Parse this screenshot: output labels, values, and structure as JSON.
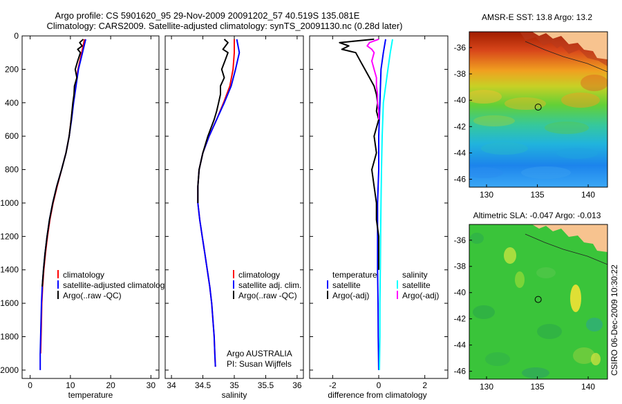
{
  "header": {
    "line1": "Argo profile: CS 5901620_95 29-Nov-2009 20091202_57 40.519S 135.081E",
    "line2": "Climatology: CARS2009. Satellite-adjusted climatology: synTS_20091130.nc (0.28d later)"
  },
  "credit": "CSIRO 06-Dec-2009 10:30:22",
  "chart_data": [
    {
      "type": "line",
      "name": "temperature profile",
      "xlabel": "temperature",
      "ylabel": "depth",
      "xlim": [
        -2,
        32
      ],
      "ylim": [
        2050,
        0
      ],
      "xticks": [
        0,
        10,
        20,
        30
      ],
      "yticks": [
        0,
        200,
        400,
        600,
        800,
        1000,
        1200,
        1400,
        1600,
        1800,
        2000
      ],
      "legend": [
        "climatology",
        "satellite-adjusted climatology",
        "Argo(..raw -QC)"
      ],
      "series": [
        {
          "name": "climatology",
          "color": "#ff0000",
          "depth": [
            20,
            100,
            200,
            300,
            400,
            500,
            600,
            700,
            800,
            900,
            1000,
            1100,
            1200,
            1300,
            1400,
            1500,
            1600,
            1700,
            1800,
            1900
          ],
          "values": [
            13.5,
            12.8,
            11.9,
            11.3,
            10.7,
            10.2,
            9.7,
            8.9,
            7.8,
            6.7,
            5.7,
            4.9,
            4.3,
            3.8,
            3.4,
            3.1,
            2.9,
            2.8,
            2.7,
            2.6
          ]
        },
        {
          "name": "satellite-adjusted climatology",
          "color": "#0000ff",
          "depth": [
            20,
            100,
            200,
            300,
            400,
            500,
            600,
            700,
            800,
            900,
            1000,
            1100,
            1200,
            1300,
            1400,
            1500,
            1600,
            1700,
            1800,
            1900,
            2000
          ],
          "values": [
            13.8,
            13.0,
            12.0,
            11.4,
            10.8,
            10.3,
            9.7,
            8.9,
            7.8,
            6.6,
            5.6,
            4.8,
            4.2,
            3.7,
            3.3,
            3.0,
            2.8,
            2.7,
            2.6,
            2.5,
            2.5
          ]
        },
        {
          "name": "Argo(..raw -QC)",
          "color": "#000000",
          "depth": [
            20,
            40,
            60,
            80,
            100,
            150,
            200,
            250,
            300,
            350,
            400,
            450,
            500,
            600,
            700,
            800,
            900,
            1000,
            1100,
            1200,
            1300,
            1400,
            1500
          ],
          "values": [
            13.2,
            12.3,
            12.9,
            11.8,
            12.5,
            11.8,
            11.2,
            11.6,
            11.0,
            10.9,
            10.6,
            10.4,
            10.2,
            9.7,
            8.9,
            7.8,
            6.6,
            5.6,
            4.8,
            4.2,
            3.7,
            3.3,
            3.0
          ]
        }
      ]
    },
    {
      "type": "line",
      "name": "salinity profile",
      "xlabel": "salinity",
      "ylabel": "depth",
      "xlim": [
        33.9,
        36.1
      ],
      "ylim": [
        2050,
        0
      ],
      "xticks": [
        34,
        34.5,
        35,
        35.5,
        36
      ],
      "legend": [
        "climatology",
        "satellite adj. clim.",
        "Argo(..raw -QC)"
      ],
      "annotation": [
        "Argo AUSTRALIA",
        "PI: Susan Wijffels"
      ],
      "series": [
        {
          "name": "climatology",
          "color": "#ff0000",
          "depth": [
            20,
            100,
            200,
            300,
            400,
            500,
            600,
            700,
            800,
            900,
            1000,
            1100,
            1200,
            1300,
            1400,
            1500,
            1600,
            1700,
            1800,
            1900,
            1980
          ],
          "values": [
            35.0,
            35.0,
            34.98,
            34.93,
            34.83,
            34.72,
            34.6,
            34.5,
            34.44,
            34.42,
            34.42,
            34.45,
            34.49,
            34.53,
            34.57,
            34.61,
            34.64,
            34.66,
            34.68,
            34.69,
            34.7
          ]
        },
        {
          "name": "satellite adj. clim.",
          "color": "#0000ff",
          "depth": [
            20,
            100,
            200,
            300,
            400,
            500,
            600,
            700,
            800,
            900,
            1000,
            1100,
            1200,
            1300,
            1400,
            1500,
            1600,
            1700,
            1800,
            1900,
            1980
          ],
          "values": [
            35.04,
            35.08,
            35.02,
            34.95,
            34.84,
            34.72,
            34.6,
            34.5,
            34.44,
            34.42,
            34.42,
            34.45,
            34.49,
            34.53,
            34.57,
            34.61,
            34.64,
            34.66,
            34.68,
            34.69,
            34.7
          ]
        },
        {
          "name": "Argo(..raw -QC)",
          "color": "#000000",
          "depth": [
            20,
            40,
            60,
            80,
            100,
            150,
            200,
            250,
            300,
            350,
            400,
            450,
            500,
            600,
            700,
            800,
            900,
            1000
          ],
          "values": [
            34.84,
            34.9,
            34.86,
            34.82,
            34.9,
            34.85,
            34.8,
            34.84,
            34.78,
            34.78,
            34.75,
            34.72,
            34.68,
            34.58,
            34.5,
            34.44,
            34.42,
            34.42
          ]
        }
      ]
    },
    {
      "type": "line",
      "name": "difference from climatology",
      "xlabel": "difference from climatology",
      "ylabel": "depth",
      "xlim": [
        -3,
        3
      ],
      "ylim": [
        2050,
        0
      ],
      "xticks": [
        -2,
        0,
        2
      ],
      "legend": {
        "temperature": {
          "title": "temperature",
          "entries": [
            "satellite",
            "Argo(-adj)"
          ]
        },
        "salinity": {
          "title": "salinity",
          "entries": [
            "satellite",
            "Argo(-adj)"
          ]
        }
      },
      "series": [
        {
          "name": "temperature satellite",
          "color": "#0000ff",
          "depth": [
            20,
            100,
            200,
            400,
            600,
            800,
            1000,
            1200,
            1400,
            1600,
            1800,
            2000
          ],
          "values": [
            0.3,
            0.2,
            0.1,
            0.05,
            0.0,
            0.0,
            -0.05,
            -0.05,
            -0.05,
            -0.03,
            -0.02,
            0.0
          ]
        },
        {
          "name": "temperature Argo(-adj)",
          "color": "#000000",
          "depth": [
            20,
            40,
            60,
            80,
            100,
            150,
            200,
            250,
            300,
            350,
            400,
            450,
            500,
            600,
            700,
            800,
            900,
            1000,
            1100,
            1200,
            1400
          ],
          "values": [
            -0.2,
            -1.7,
            -1.3,
            -1.6,
            -1.0,
            -0.8,
            -0.6,
            -0.4,
            -0.2,
            -0.1,
            -0.05,
            -0.1,
            0.0,
            -0.2,
            -0.1,
            -0.3,
            -0.2,
            -0.1,
            -0.1,
            0.0,
            0.0
          ]
        },
        {
          "name": "salinity satellite",
          "color": "#00ffff",
          "depth": [
            20,
            100,
            200,
            300,
            400,
            600,
            800,
            1000,
            1200,
            1400,
            1600,
            1800,
            2000
          ],
          "values": [
            0.6,
            0.5,
            0.4,
            0.3,
            0.2,
            0.15,
            0.12,
            0.1,
            0.08,
            0.07,
            0.05,
            0.05,
            0.03
          ]
        },
        {
          "name": "salinity Argo(-adj)",
          "color": "#ff00ff",
          "depth": [
            20,
            40,
            60,
            80,
            100,
            150,
            200,
            250,
            300,
            350,
            400,
            450,
            500
          ],
          "values": [
            0.0,
            -0.4,
            -0.5,
            -0.3,
            -0.2,
            -0.3,
            -0.2,
            -0.1,
            -0.1,
            -0.05,
            -0.05,
            0.0,
            0.0
          ]
        }
      ]
    },
    {
      "type": "heatmap",
      "name": "sst map",
      "title": "AMSR-E SST: 13.8 Argo: 13.2",
      "xlim": [
        128.3,
        141.9
      ],
      "ylim": [
        -46.6,
        -34.8
      ],
      "xticks": [
        130,
        135,
        140
      ],
      "yticks": [
        -36,
        -38,
        -40,
        -42,
        -44,
        -46
      ],
      "marker": {
        "lon": 135.08,
        "lat": -40.52
      }
    },
    {
      "type": "heatmap",
      "name": "sla map",
      "title": "Altimetric SLA: -0.047 Argo: -0.013",
      "xlim": [
        128.3,
        141.9
      ],
      "ylim": [
        -46.6,
        -34.8
      ],
      "xticks": [
        130,
        135,
        140
      ],
      "yticks": [
        -36,
        -38,
        -40,
        -42,
        -44,
        -46
      ],
      "marker": {
        "lon": 135.08,
        "lat": -40.52
      }
    }
  ]
}
